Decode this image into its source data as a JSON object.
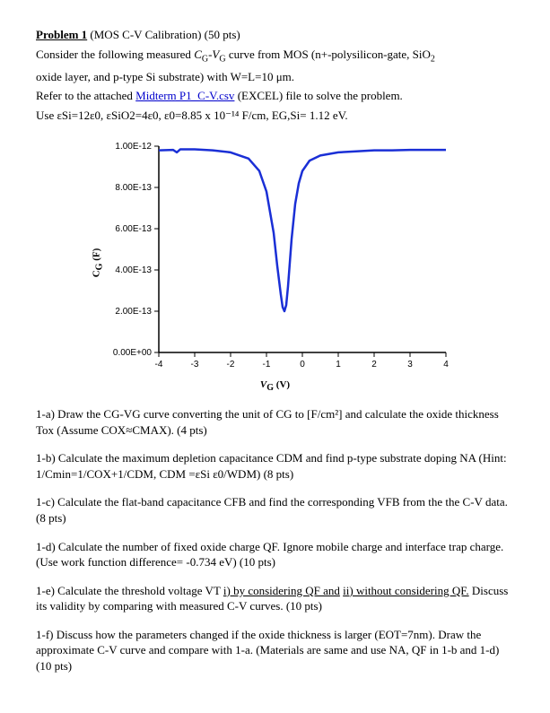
{
  "header": {
    "title_prefix": "Problem 1",
    "title_rest": " (MOS C-V Calibration) (50 pts)",
    "line2a": "Consider the following measured ",
    "line2b": "C",
    "line2c": "G",
    "line2d": "-V",
    "line2e": "G",
    "line2f": " curve from MOS (n+-polysilicon-gate, SiO",
    "line2g": "2",
    "line3": "oxide layer, and p-type Si substrate) with W=L=10 μm.",
    "line4a": "Refer to the attached ",
    "line4link": "Midterm P1_C-V.csv",
    "line4b": " (EXCEL) file to solve the problem.",
    "line5": "Use εSi=12ε0, εSiO2=4ε0,  ε0=8.85 x 10⁻¹⁴ F/cm, EG,Si= 1.12 eV."
  },
  "chart": {
    "type": "line",
    "xlabel": "V_G (V)",
    "ylabel": "C_G (F)",
    "xlim": [
      -4,
      4
    ],
    "ylim": [
      0,
      1e-12
    ],
    "xticks": [
      -4,
      -3,
      -2,
      -1,
      0,
      1,
      2,
      3,
      4
    ],
    "yticks": [
      0,
      2e-13,
      4e-13,
      6e-13,
      8e-13,
      1e-12
    ],
    "ytick_labels": [
      "0.00E+00",
      "2.00E-13",
      "4.00E-13",
      "6.00E-13",
      "8.00E-13",
      "1.00E-12"
    ],
    "line_color": "#1a2fd6",
    "line_width": 2.5,
    "axis_color": "#000000",
    "tick_fontsize": 10,
    "label_fontsize": 11,
    "background_color": "#ffffff",
    "data": {
      "x": [
        -4.0,
        -3.6,
        -3.5,
        -3.4,
        -3.0,
        -2.5,
        -2.0,
        -1.5,
        -1.2,
        -1.0,
        -0.8,
        -0.7,
        -0.6,
        -0.55,
        -0.5,
        -0.45,
        -0.4,
        -0.3,
        -0.2,
        -0.1,
        0.0,
        0.2,
        0.5,
        1.0,
        1.5,
        2.0,
        2.5,
        3.0,
        3.5,
        4.0
      ],
      "y": [
        9.8e-13,
        9.82e-13,
        9.7e-13,
        9.85e-13,
        9.85e-13,
        9.8e-13,
        9.7e-13,
        9.4e-13,
        8.8e-13,
        7.8e-13,
        5.8e-13,
        4.2e-13,
        2.8e-13,
        2.2e-13,
        2e-13,
        2.3e-13,
        3.2e-13,
        5.5e-13,
        7.2e-13,
        8.2e-13,
        8.8e-13,
        9.3e-13,
        9.55e-13,
        9.7e-13,
        9.75e-13,
        9.8e-13,
        9.8e-13,
        9.82e-13,
        9.82e-13,
        9.82e-13
      ]
    }
  },
  "q": {
    "a": "1-a) Draw the CG-VG curve converting the unit of CG to [F/cm²] and calculate the oxide thickness Tox (Assume COX≈CMAX). (4 pts)",
    "b": "1-b) Calculate the maximum depletion capacitance CDM and find p-type substrate doping NA (Hint: 1/Cmin=1/COX+1/CDM, CDM =εSi ε0/WDM) (8 pts)",
    "c": "1-c) Calculate the flat-band capacitance CFB and find the corresponding VFB from the the C-V data. (8 pts)",
    "d": "1-d) Calculate the number of fixed oxide charge QF. Ignore mobile charge and interface trap charge. (Use work function difference= -0.734 eV) (10 pts)",
    "e_pre": "1-e) Calculate the threshold voltage VT ",
    "e_u1": "i) by considering QF and",
    "e_mid": " ",
    "e_u2": "ii) without considering QF.",
    "e_post": " Discuss its validity by comparing with measured C-V curves. (10 pts)",
    "f": "1-f) Discuss how the parameters changed if the oxide thickness is larger (EOT=7nm). Draw the approximate C-V curve and compare with 1-a. (Materials are same and use NA, QF in 1-b and 1-d) (10 pts)"
  }
}
